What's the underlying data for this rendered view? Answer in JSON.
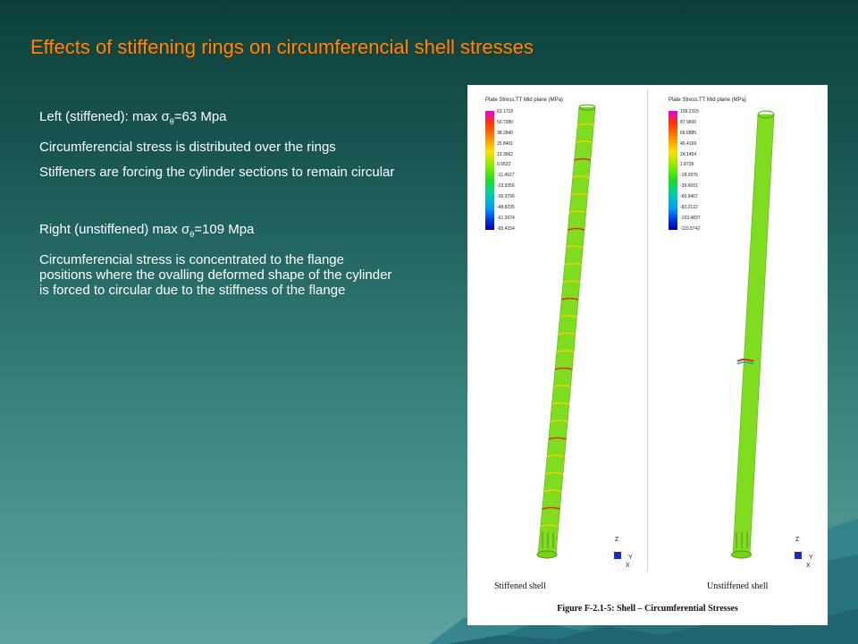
{
  "slide": {
    "title": "Effects of stiffening rings on circumferencial shell stresses",
    "bullets": [
      {
        "pre": "Left (stiffened): max σ",
        "sub": "θ",
        "post": "=63 Mpa"
      },
      {
        "text": "Circumferencial stress is distributed over the rings"
      },
      {
        "text": "Stiffeners are forcing the cylinder sections to remain circular"
      },
      {
        "pre": "Right (unstiffened) max σ",
        "sub": "θ",
        "post": "=109 Mpa"
      },
      {
        "text": "Circumferencial stress is concentrated to the flange positions where the ovalling deformed shape of the cylinder is forced to circular due to the stiffness of the flange"
      }
    ]
  },
  "figure": {
    "left": {
      "legend_title": "Plate Stress:TT Mid plane (MPa)",
      "ticks": [
        "63.1719",
        "50.7280",
        "38.2840",
        "25.8401",
        "13.3962",
        "0.9522",
        "-11.4917",
        "-23.9356",
        "-36.3796",
        "-48.8235",
        "-61.2674",
        "-65.4154"
      ],
      "caption": "Stiffened shell"
    },
    "right": {
      "legend_title": "Plate Stress:TT Mid plane (MPa)",
      "ticks": [
        "109.2315",
        "87.9600",
        "66.6885",
        "45.4169",
        "24.1454",
        "2.8739",
        "-18.3976",
        "-39.6691",
        "-60.9407",
        "-82.2122",
        "-103.4837",
        "-110.5742"
      ],
      "caption": "Unstiffened shell"
    },
    "axis": {
      "z": "Z",
      "y": "Y",
      "x": "X"
    },
    "title": "Figure F-2.1-5: Shell – Circumferential Stresses"
  },
  "colors": {
    "title": "#f08a18",
    "shell": "#7fdc1e",
    "ring": "#e8d400",
    "hotspot": "#e03010",
    "background": "#2a6b66"
  }
}
